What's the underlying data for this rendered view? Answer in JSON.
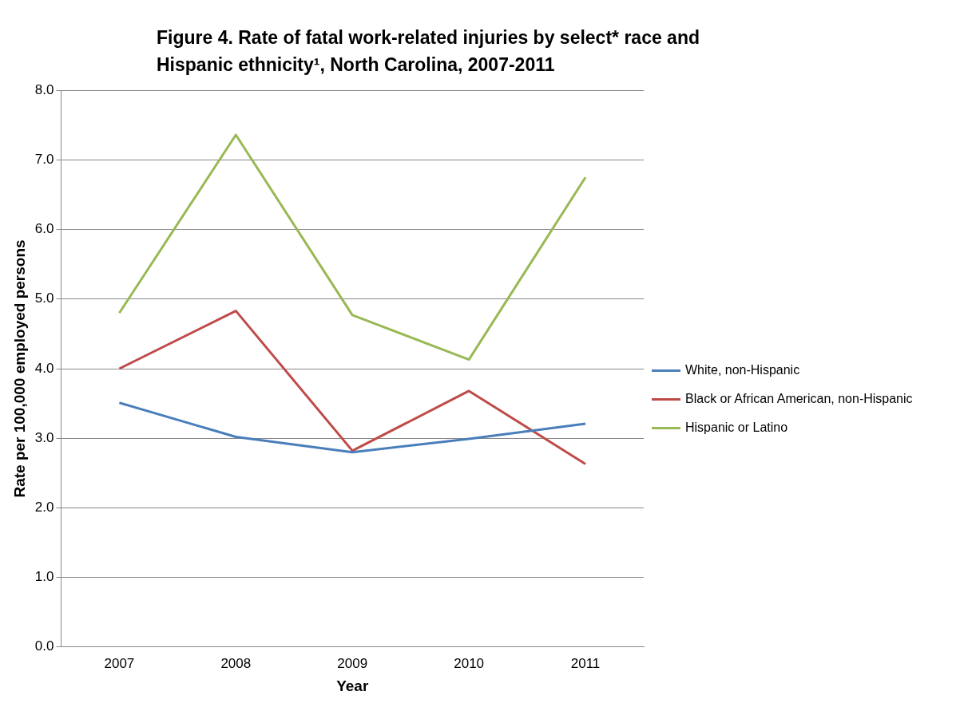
{
  "chart_data": {
    "type": "line",
    "title": "Figure 4. Rate of fatal work-related injuries by select* race and Hispanic ethnicity¹, North Carolina, 2007-2011",
    "xlabel": "Year",
    "ylabel": "Rate per 100,000 employed persons",
    "categories": [
      "2007",
      "2008",
      "2009",
      "2010",
      "2011"
    ],
    "series": [
      {
        "name": "White, non-Hispanic",
        "color": "#4a7ebb",
        "values": [
          3.51,
          3.02,
          2.8,
          2.99,
          3.21
        ]
      },
      {
        "name": "Black or African American, non-Hispanic",
        "color": "#be4b48",
        "values": [
          4.0,
          4.83,
          2.82,
          3.68,
          2.63
        ]
      },
      {
        "name": "Hispanic or Latino",
        "color": "#98b954",
        "values": [
          4.8,
          7.36,
          4.77,
          4.13,
          6.75
        ]
      }
    ],
    "ylim": [
      0,
      8
    ],
    "yticks": [
      {
        "value": 0,
        "label": "0.0"
      },
      {
        "value": 1,
        "label": "1.0"
      },
      {
        "value": 2,
        "label": "2.0"
      },
      {
        "value": 3,
        "label": "3.0"
      },
      {
        "value": 4,
        "label": "4.0"
      },
      {
        "value": 5,
        "label": "5.0"
      },
      {
        "value": 6,
        "label": "6.0"
      },
      {
        "value": 7,
        "label": "7.0"
      },
      {
        "value": 8,
        "label": "8.0"
      }
    ],
    "grid": "y",
    "legend": "right",
    "marker": "none",
    "line_style": "solid"
  }
}
